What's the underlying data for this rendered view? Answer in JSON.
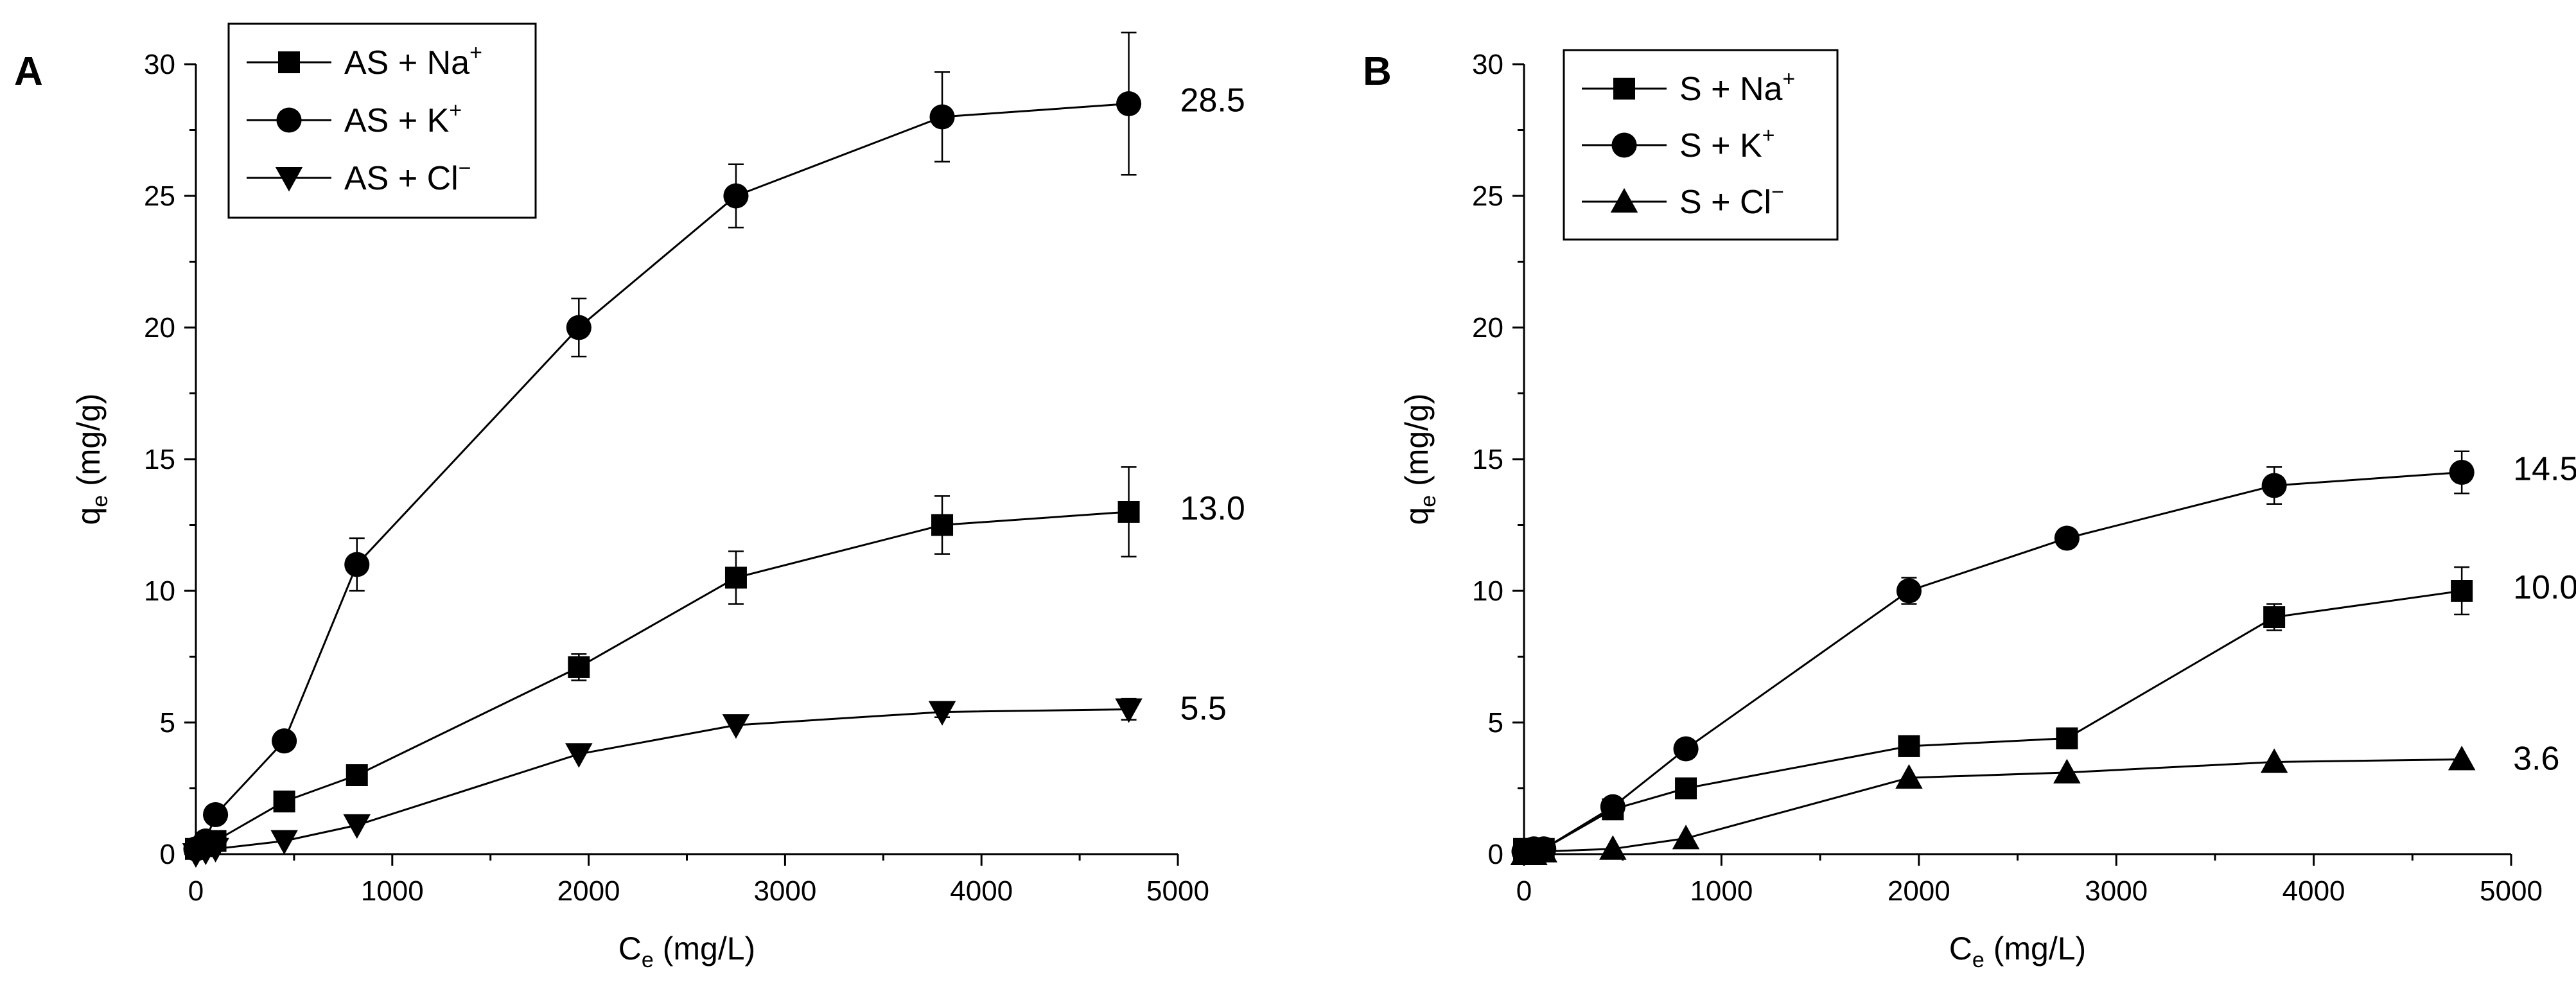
{
  "chart_data": [
    {
      "panel_label": "A",
      "type": "line",
      "xlabel": {
        "main": "C",
        "sub": "e",
        "unit": " (mg/L)"
      },
      "ylabel": {
        "main": "q",
        "sub": "e",
        "unit": " (mg/g)"
      },
      "xlim": [
        0,
        5000
      ],
      "ylim": [
        0,
        30
      ],
      "xticks": [
        0,
        1000,
        2000,
        3000,
        4000,
        5000
      ],
      "yticks": [
        0,
        5,
        10,
        15,
        20,
        25,
        30
      ],
      "legend_position": "top-left",
      "series": [
        {
          "name": "AS + Na+",
          "legend_base": "AS + Na",
          "legend_sup": "+",
          "marker": "square",
          "x": [
            0,
            50,
            100,
            450,
            820,
            1950,
            2750,
            3800,
            4750
          ],
          "y": [
            0.2,
            0.3,
            0.5,
            2.0,
            3.0,
            7.1,
            10.5,
            12.5,
            13.0
          ],
          "err": [
            0,
            0,
            0,
            0,
            0,
            0.5,
            1.0,
            1.1,
            1.7
          ],
          "end_label": "13.0"
        },
        {
          "name": "AS + K+",
          "legend_base": "AS + K",
          "legend_sup": "+",
          "marker": "circle",
          "x": [
            0,
            50,
            100,
            450,
            820,
            1950,
            2750,
            3800,
            4750
          ],
          "y": [
            0.2,
            0.5,
            1.5,
            4.3,
            11.0,
            20.0,
            25.0,
            28.0,
            28.5
          ],
          "err": [
            0,
            0,
            0,
            0,
            1.0,
            1.1,
            1.2,
            1.7,
            2.7
          ],
          "end_label": "28.5"
        },
        {
          "name": "AS + Cl-",
          "legend_base": "AS + Cl",
          "legend_sup": "−",
          "marker": "triangle-down",
          "x": [
            0,
            50,
            100,
            450,
            820,
            1950,
            2750,
            3800,
            4750
          ],
          "y": [
            0.0,
            0.1,
            0.2,
            0.5,
            1.1,
            3.8,
            4.9,
            5.4,
            5.5
          ],
          "err": [
            0,
            0,
            0,
            0,
            0,
            0,
            0,
            0.2,
            0.4
          ],
          "end_label": "5.5"
        }
      ]
    },
    {
      "panel_label": "B",
      "type": "line",
      "xlabel": {
        "main": "C",
        "sub": "e",
        "unit": " (mg/L)"
      },
      "ylabel": {
        "main": "q",
        "sub": "e",
        "unit": " (mg/g)"
      },
      "xlim": [
        0,
        5000
      ],
      "ylim": [
        0,
        30
      ],
      "xticks": [
        0,
        1000,
        2000,
        3000,
        4000,
        5000
      ],
      "yticks": [
        0,
        5,
        10,
        15,
        20,
        25,
        30
      ],
      "legend_position": "top-left",
      "series": [
        {
          "name": "S + Na+",
          "legend_base": "S + Na",
          "legend_sup": "+",
          "marker": "square",
          "x": [
            0,
            50,
            100,
            450,
            820,
            1950,
            2750,
            3800,
            4750
          ],
          "y": [
            0.2,
            0.2,
            0.2,
            1.7,
            2.5,
            4.1,
            4.4,
            9.0,
            10.0
          ],
          "err": [
            0,
            0,
            0,
            0,
            0,
            0,
            0,
            0.5,
            0.9
          ],
          "end_label": "10.0"
        },
        {
          "name": "S + K+",
          "legend_base": "S + K",
          "legend_sup": "+",
          "marker": "circle",
          "x": [
            0,
            50,
            100,
            450,
            820,
            1950,
            2750,
            3800,
            4750
          ],
          "y": [
            0.1,
            0.2,
            0.2,
            1.8,
            4.0,
            10.0,
            12.0,
            14.0,
            14.5
          ],
          "err": [
            0,
            0,
            0,
            0,
            0.2,
            0.5,
            0,
            0.7,
            0.8
          ],
          "end_label": "14.5"
        },
        {
          "name": "S + Cl-",
          "legend_base": "S + Cl",
          "legend_sup": "−",
          "marker": "triangle-up",
          "x": [
            0,
            50,
            100,
            450,
            820,
            1950,
            2750,
            3800,
            4750
          ],
          "y": [
            0.0,
            0.0,
            0.1,
            0.2,
            0.6,
            2.9,
            3.1,
            3.5,
            3.6
          ],
          "err": [
            0,
            0,
            0,
            0,
            0,
            0,
            0,
            0,
            0
          ],
          "end_label": "3.6"
        }
      ]
    }
  ]
}
